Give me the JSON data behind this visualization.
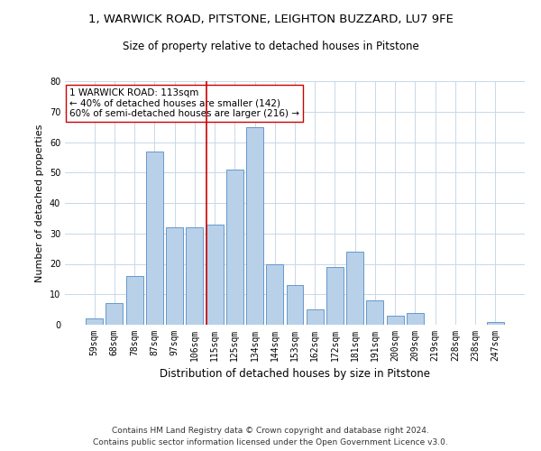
{
  "title_line1": "1, WARWICK ROAD, PITSTONE, LEIGHTON BUZZARD, LU7 9FE",
  "title_line2": "Size of property relative to detached houses in Pitstone",
  "xlabel": "Distribution of detached houses by size in Pitstone",
  "ylabel": "Number of detached properties",
  "categories": [
    "59sqm",
    "68sqm",
    "78sqm",
    "87sqm",
    "97sqm",
    "106sqm",
    "115sqm",
    "125sqm",
    "134sqm",
    "144sqm",
    "153sqm",
    "162sqm",
    "172sqm",
    "181sqm",
    "191sqm",
    "200sqm",
    "209sqm",
    "219sqm",
    "228sqm",
    "238sqm",
    "247sqm"
  ],
  "values": [
    2,
    7,
    16,
    57,
    32,
    32,
    33,
    51,
    65,
    20,
    13,
    5,
    19,
    24,
    8,
    3,
    4,
    0,
    0,
    0,
    1
  ],
  "bar_color": "#b8d0e8",
  "bar_edge_color": "#6699cc",
  "vline_x_index": 6,
  "vline_color": "#cc0000",
  "annotation_text": "1 WARWICK ROAD: 113sqm\n← 40% of detached houses are smaller (142)\n60% of semi-detached houses are larger (216) →",
  "annotation_box_color": "white",
  "annotation_box_edge_color": "#cc0000",
  "ylim": [
    0,
    80
  ],
  "yticks": [
    0,
    10,
    20,
    30,
    40,
    50,
    60,
    70,
    80
  ],
  "footnote1": "Contains HM Land Registry data © Crown copyright and database right 2024.",
  "footnote2": "Contains public sector information licensed under the Open Government Licence v3.0.",
  "background_color": "#ffffff",
  "grid_color": "#c8d8e8",
  "title_fontsize": 9.5,
  "subtitle_fontsize": 8.5,
  "xlabel_fontsize": 8.5,
  "ylabel_fontsize": 8,
  "tick_fontsize": 7,
  "annotation_fontsize": 7.5,
  "footnote_fontsize": 6.5
}
